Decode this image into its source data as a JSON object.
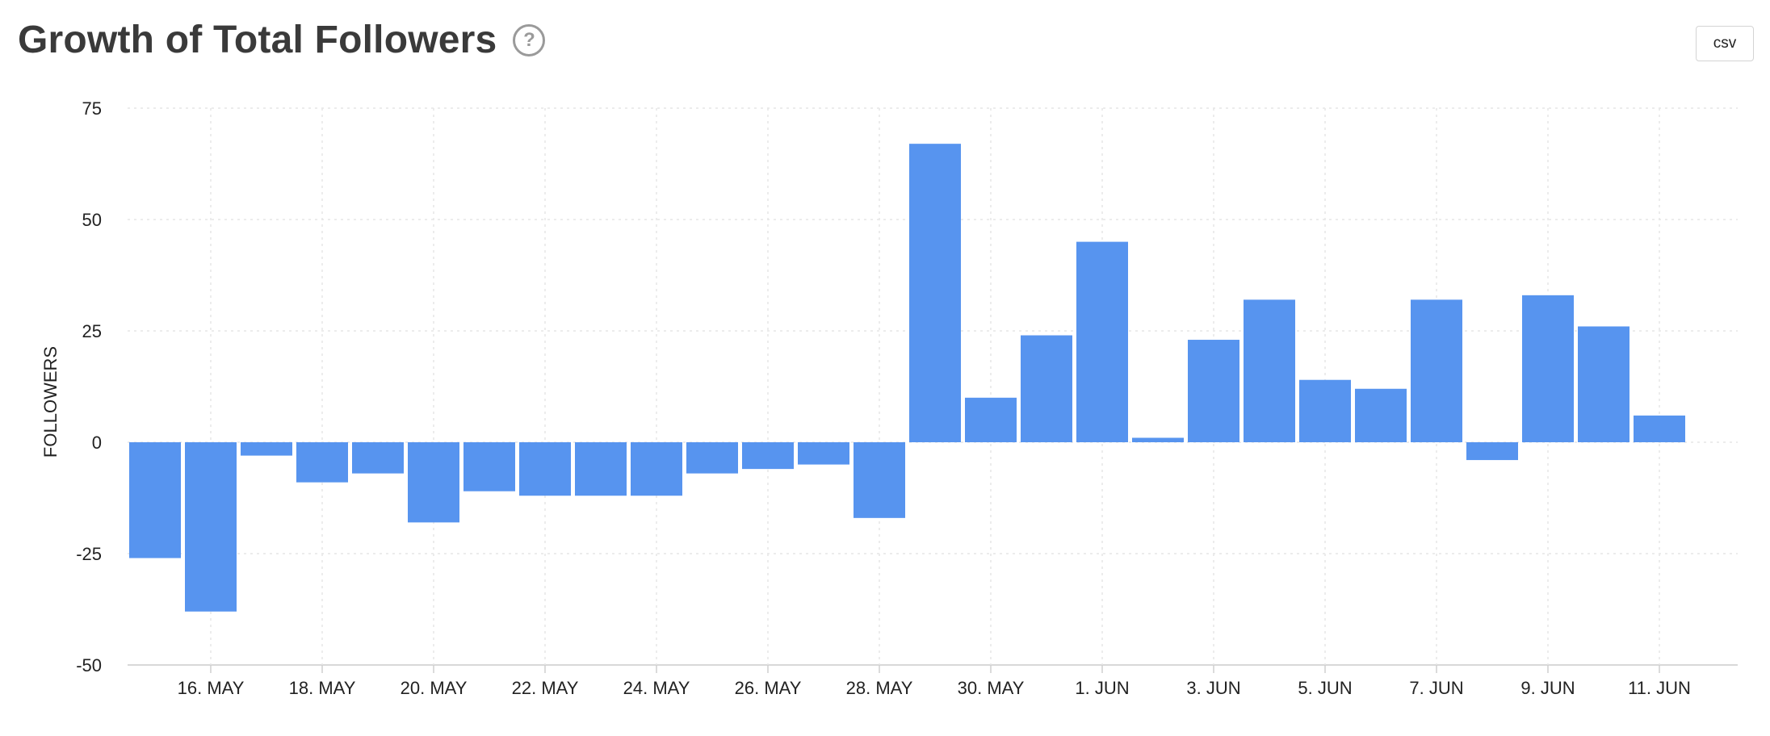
{
  "header": {
    "title": "Growth of Total Followers",
    "help_icon": "question-circle-icon",
    "help_glyph": "?",
    "csv_label": "csv"
  },
  "chart_data": {
    "type": "bar",
    "title": "Growth of Total Followers",
    "xlabel": "",
    "ylabel": "FOLLOWERS",
    "ylim": [
      -50,
      75
    ],
    "yticks": [
      75,
      50,
      25,
      0,
      -25,
      -50
    ],
    "grid": true,
    "bar_color": "#5794ef",
    "categories": [
      "15. MAY",
      "16. MAY",
      "17. MAY",
      "18. MAY",
      "19. MAY",
      "20. MAY",
      "21. MAY",
      "22. MAY",
      "23. MAY",
      "24. MAY",
      "25. MAY",
      "26. MAY",
      "27. MAY",
      "28. MAY",
      "29. MAY",
      "30. MAY",
      "31. MAY",
      "1. JUN",
      "2. JUN",
      "3. JUN",
      "4. JUN",
      "5. JUN",
      "6. JUN",
      "7. JUN",
      "8. JUN",
      "9. JUN",
      "10. JUN",
      "11. JUN"
    ],
    "x_tick_labels": [
      "16. MAY",
      "18. MAY",
      "20. MAY",
      "22. MAY",
      "24. MAY",
      "26. MAY",
      "28. MAY",
      "30. MAY",
      "1. JUN",
      "3. JUN",
      "5. JUN",
      "7. JUN",
      "9. JUN",
      "11. JUN"
    ],
    "values": [
      -26,
      -38,
      -3,
      -9,
      -7,
      -18,
      -11,
      -12,
      -12,
      -12,
      -7,
      -6,
      -5,
      -17,
      67,
      10,
      24,
      45,
      1,
      23,
      32,
      14,
      12,
      32,
      -4,
      33,
      26,
      6
    ]
  }
}
